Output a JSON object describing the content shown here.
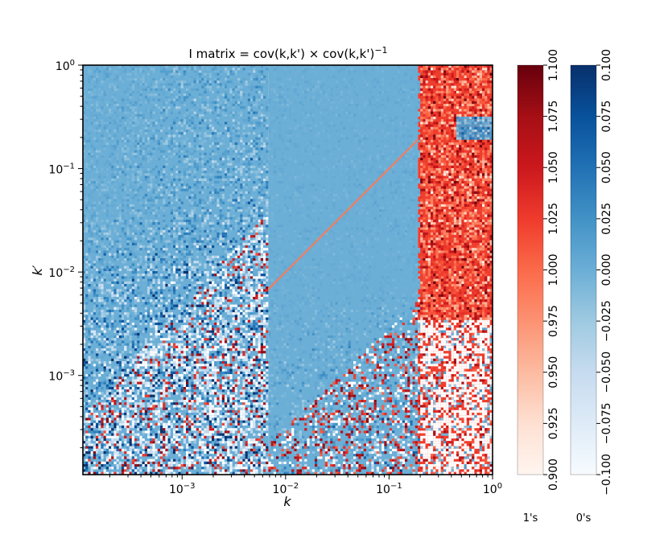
{
  "chart_data": {
    "type": "heatmap",
    "title": "I matrix = cov(k,k') × cov(k,k')",
    "title_superscript": "−1",
    "xlabel": "k",
    "ylabel": "k′",
    "x_scale": "log",
    "y_scale": "log",
    "xlim": [
      0.00011,
      1.0
    ],
    "ylim": [
      0.00011,
      1.0
    ],
    "x_ticks": [
      {
        "value": 0.001,
        "base": "10",
        "exp": "−3"
      },
      {
        "value": 0.01,
        "base": "10",
        "exp": "−2"
      },
      {
        "value": 0.1,
        "base": "10",
        "exp": "−1"
      },
      {
        "value": 1.0,
        "base": "10",
        "exp": "0"
      }
    ],
    "y_ticks": [
      {
        "value": 0.001,
        "base": "10",
        "exp": "−3"
      },
      {
        "value": 0.01,
        "base": "10",
        "exp": "−2"
      },
      {
        "value": 0.1,
        "base": "10",
        "exp": "−1"
      },
      {
        "value": 1.0,
        "base": "10",
        "exp": "0"
      }
    ],
    "regions": [
      {
        "name": "",
        "k_range": [
          0.00011,
          0.0068
        ],
        "colormap": "Blues",
        "description_value": "near 0 with noise increasing toward low k'"
      },
      {
        "name": "",
        "k_range": [
          0.0068,
          0.19
        ],
        "colormap": "Blues",
        "description_value": "near 0 with noise increasing toward low k'"
      },
      {
        "name": "",
        "k_range": [
          0.19,
          1.0
        ],
        "colormap": "Reds",
        "description_value": "near 1 above k'≈0.004"
      }
    ],
    "diagonal_line": {
      "from": [
        0.0068,
        0.0068
      ],
      "to": [
        0.19,
        0.19
      ],
      "color": "#f47c5c"
    },
    "colorbars": [
      {
        "label": "1's",
        "colormap": "Reds",
        "range": [
          0.9,
          1.1
        ],
        "ticks": [
          "0.900",
          "0.925",
          "0.950",
          "0.975",
          "1.000",
          "1.025",
          "1.050",
          "1.075",
          "1.100"
        ],
        "color_low": "#fff5f0",
        "color_mid": "#fb6a4a",
        "color_high": "#67000d"
      },
      {
        "label": "0's",
        "colormap": "Blues",
        "range": [
          -0.1,
          0.1
        ],
        "ticks": [
          "−0.100",
          "−0.075",
          "−0.050",
          "−0.025",
          "0.000",
          "0.025",
          "0.050",
          "0.075",
          "0.100"
        ],
        "color_low": "#f7fbff",
        "color_mid": "#6baed6",
        "color_high": "#08306b"
      }
    ],
    "grid": false
  }
}
